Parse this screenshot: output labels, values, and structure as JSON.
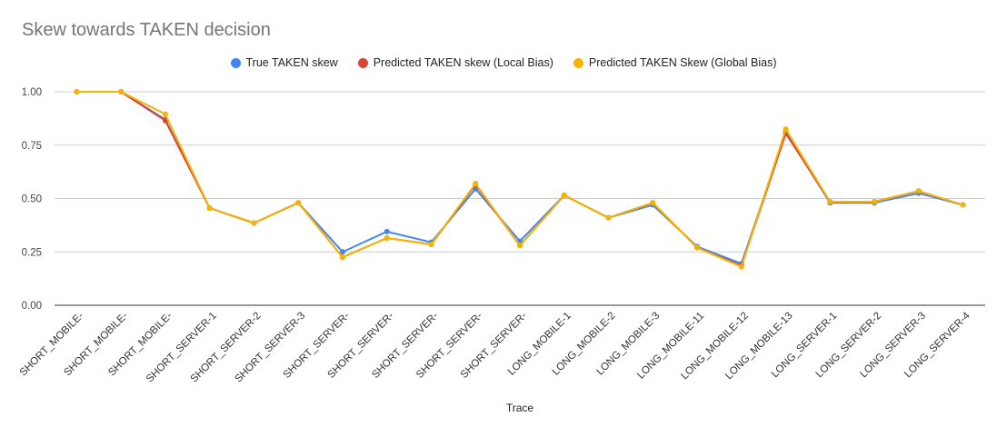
{
  "chart_data": {
    "type": "line",
    "title": "Skew towards TAKEN decision",
    "xlabel": "Trace",
    "ylabel": "",
    "ylim": [
      0,
      1
    ],
    "yticks": [
      "0.00",
      "0.25",
      "0.50",
      "0.75",
      "1.00"
    ],
    "ytick_values": [
      0,
      0.25,
      0.5,
      0.75,
      1.0
    ],
    "grid": true,
    "legend_position": "top-center",
    "categories": [
      "SHORT_MOBILE-",
      "SHORT_MOBILE-",
      "SHORT_MOBILE-",
      "SHORT_SERVER-1",
      "SHORT_SERVER-2",
      "SHORT_SERVER-3",
      "SHORT_SERVER-",
      "SHORT_SERVER-",
      "SHORT_SERVER-",
      "SHORT_SERVER-",
      "SHORT_SERVER-",
      "LONG_MOBILE-1",
      "LONG_MOBILE-2",
      "LONG_MOBILE-3",
      "LONG_MOBILE-11",
      "LONG_MOBILE-12",
      "LONG_MOBILE-13",
      "LONG_SERVER-1",
      "LONG_SERVER-2",
      "LONG_SERVER-3",
      "LONG_SERVER-4"
    ],
    "series": [
      {
        "name": "True TAKEN skew",
        "color": "#4285f4",
        "values": [
          1.0,
          1.0,
          0.87,
          0.455,
          0.385,
          0.48,
          0.25,
          0.345,
          0.295,
          0.545,
          0.3,
          0.515,
          0.41,
          0.47,
          0.275,
          0.195,
          0.81,
          0.48,
          0.48,
          0.525,
          0.47
        ]
      },
      {
        "name": "Predicted TAKEN skew (Local Bias)",
        "color": "#db4437",
        "values": [
          1.0,
          1.0,
          0.865,
          0.455,
          0.385,
          0.48,
          0.225,
          0.315,
          0.285,
          0.565,
          0.28,
          0.515,
          0.41,
          0.48,
          0.27,
          0.185,
          0.805,
          0.485,
          0.485,
          0.535,
          0.47
        ]
      },
      {
        "name": "Predicted TAKEN Skew (Global Bias)",
        "color": "#f4b400",
        "values": [
          1.0,
          1.0,
          0.895,
          0.455,
          0.385,
          0.48,
          0.225,
          0.315,
          0.285,
          0.57,
          0.28,
          0.515,
          0.41,
          0.48,
          0.27,
          0.18,
          0.825,
          0.485,
          0.485,
          0.535,
          0.47
        ]
      }
    ]
  }
}
